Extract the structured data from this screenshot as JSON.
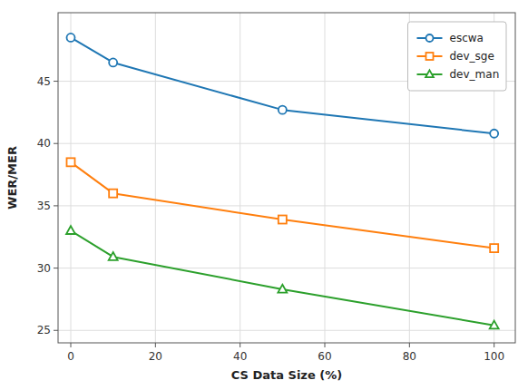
{
  "chart_data": {
    "type": "line",
    "x": [
      0,
      10,
      50,
      100
    ],
    "series": [
      {
        "name": "escwa",
        "color": "#1f77b4",
        "marker": "circle",
        "values": [
          48.5,
          46.5,
          42.7,
          40.8
        ]
      },
      {
        "name": "dev_sge",
        "color": "#ff7f0e",
        "marker": "square",
        "values": [
          38.5,
          36.0,
          33.9,
          31.6
        ]
      },
      {
        "name": "dev_man",
        "color": "#2ca02c",
        "marker": "triangle",
        "values": [
          33.0,
          30.9,
          28.3,
          25.4
        ]
      }
    ],
    "xlabel": "CS Data Size (%)",
    "ylabel": "WER/MER",
    "xlim": [
      -3,
      105
    ],
    "ylim": [
      24.0,
      50.5
    ],
    "xticks": [
      0,
      20,
      40,
      60,
      80,
      100
    ],
    "yticks": [
      25,
      30,
      35,
      40,
      45
    ],
    "grid": true,
    "legend": "upper right"
  }
}
